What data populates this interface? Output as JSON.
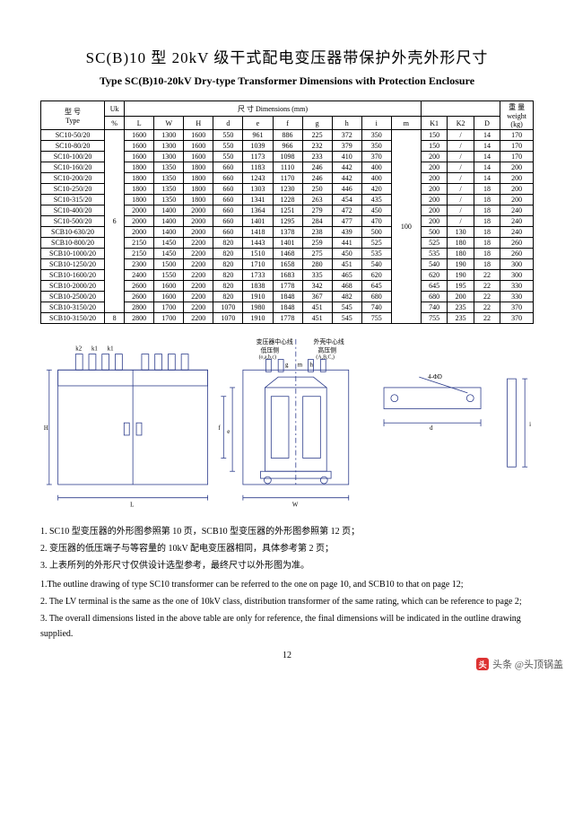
{
  "title_cn": "SC(B)10 型 20kV 级干式配电变压器带保护外壳外形尺寸",
  "title_en": "Type SC(B)10-20kV Dry-type Transformer Dimensions with Protection Enclosure",
  "header": {
    "type_cn": "型 号",
    "type_en": "Type",
    "uk": "Uk",
    "uk_unit": "%",
    "dims_label": "尺 寸    Dimensions (mm)",
    "weight_cn": "重 量",
    "weight_en": "weight",
    "weight_unit": "(kg)",
    "cols": [
      "L",
      "W",
      "H",
      "d",
      "e",
      "f",
      "g",
      "h",
      "i",
      "m",
      "K1",
      "K2",
      "D"
    ]
  },
  "uk_main": "6",
  "uk_last": "8",
  "m_shared": "100",
  "rows": [
    {
      "type": "SC10-50/20",
      "L": "1600",
      "W": "1300",
      "H": "1600",
      "d": "550",
      "e": "961",
      "f": "886",
      "g": "225",
      "h": "372",
      "i": "350",
      "K1": "150",
      "K2": "/",
      "D": "14",
      "wt": "170"
    },
    {
      "type": "SC10-80/20",
      "L": "1600",
      "W": "1300",
      "H": "1600",
      "d": "550",
      "e": "1039",
      "f": "966",
      "g": "232",
      "h": "379",
      "i": "350",
      "K1": "150",
      "K2": "/",
      "D": "14",
      "wt": "170"
    },
    {
      "type": "SC10-100/20",
      "L": "1600",
      "W": "1300",
      "H": "1600",
      "d": "550",
      "e": "1173",
      "f": "1098",
      "g": "233",
      "h": "410",
      "i": "370",
      "K1": "200",
      "K2": "/",
      "D": "14",
      "wt": "170"
    },
    {
      "type": "SC10-160/20",
      "L": "1800",
      "W": "1350",
      "H": "1800",
      "d": "660",
      "e": "1183",
      "f": "1110",
      "g": "246",
      "h": "442",
      "i": "400",
      "K1": "200",
      "K2": "/",
      "D": "14",
      "wt": "200"
    },
    {
      "type": "SC10-200/20",
      "L": "1800",
      "W": "1350",
      "H": "1800",
      "d": "660",
      "e": "1243",
      "f": "1170",
      "g": "246",
      "h": "442",
      "i": "400",
      "K1": "200",
      "K2": "/",
      "D": "14",
      "wt": "200"
    },
    {
      "type": "SC10-250/20",
      "L": "1800",
      "W": "1350",
      "H": "1800",
      "d": "660",
      "e": "1303",
      "f": "1230",
      "g": "250",
      "h": "446",
      "i": "420",
      "K1": "200",
      "K2": "/",
      "D": "18",
      "wt": "200"
    },
    {
      "type": "SC10-315/20",
      "L": "1800",
      "W": "1350",
      "H": "1800",
      "d": "660",
      "e": "1341",
      "f": "1228",
      "g": "263",
      "h": "454",
      "i": "435",
      "K1": "200",
      "K2": "/",
      "D": "18",
      "wt": "200"
    },
    {
      "type": "SC10-400/20",
      "L": "2000",
      "W": "1400",
      "H": "2000",
      "d": "660",
      "e": "1364",
      "f": "1251",
      "g": "279",
      "h": "472",
      "i": "450",
      "K1": "200",
      "K2": "/",
      "D": "18",
      "wt": "240"
    },
    {
      "type": "SC10-500/20",
      "L": "2000",
      "W": "1400",
      "H": "2000",
      "d": "660",
      "e": "1401",
      "f": "1295",
      "g": "284",
      "h": "477",
      "i": "470",
      "K1": "200",
      "K2": "/",
      "D": "18",
      "wt": "240"
    },
    {
      "type": "SCB10-630/20",
      "L": "2000",
      "W": "1400",
      "H": "2000",
      "d": "660",
      "e": "1418",
      "f": "1378",
      "g": "238",
      "h": "439",
      "i": "500",
      "K1": "500",
      "K2": "130",
      "D": "18",
      "wt": "240"
    },
    {
      "type": "SCB10-800/20",
      "L": "2150",
      "W": "1450",
      "H": "2200",
      "d": "820",
      "e": "1443",
      "f": "1401",
      "g": "259",
      "h": "441",
      "i": "525",
      "K1": "525",
      "K2": "180",
      "D": "18",
      "wt": "260"
    },
    {
      "type": "SCB10-1000/20",
      "L": "2150",
      "W": "1450",
      "H": "2200",
      "d": "820",
      "e": "1510",
      "f": "1468",
      "g": "275",
      "h": "450",
      "i": "535",
      "K1": "535",
      "K2": "180",
      "D": "18",
      "wt": "260"
    },
    {
      "type": "SCB10-1250/20",
      "L": "2300",
      "W": "1500",
      "H": "2200",
      "d": "820",
      "e": "1710",
      "f": "1658",
      "g": "280",
      "h": "451",
      "i": "540",
      "K1": "540",
      "K2": "190",
      "D": "18",
      "wt": "300"
    },
    {
      "type": "SCB10-1600/20",
      "L": "2400",
      "W": "1550",
      "H": "2200",
      "d": "820",
      "e": "1733",
      "f": "1683",
      "g": "335",
      "h": "465",
      "i": "620",
      "K1": "620",
      "K2": "190",
      "D": "22",
      "wt": "300"
    },
    {
      "type": "SCB10-2000/20",
      "L": "2600",
      "W": "1600",
      "H": "2200",
      "d": "820",
      "e": "1838",
      "f": "1778",
      "g": "342",
      "h": "468",
      "i": "645",
      "K1": "645",
      "K2": "195",
      "D": "22",
      "wt": "330"
    },
    {
      "type": "SCB10-2500/20",
      "L": "2600",
      "W": "1600",
      "H": "2200",
      "d": "820",
      "e": "1910",
      "f": "1848",
      "g": "367",
      "h": "482",
      "i": "680",
      "K1": "680",
      "K2": "200",
      "D": "22",
      "wt": "330"
    },
    {
      "type": "SCB10-3150/20",
      "L": "2800",
      "W": "1700",
      "H": "2200",
      "d": "1070",
      "e": "1980",
      "f": "1848",
      "g": "451",
      "h": "545",
      "i": "740",
      "K1": "740",
      "K2": "235",
      "D": "22",
      "wt": "370"
    },
    {
      "type": "SCB10-3150/20",
      "L": "2800",
      "W": "1700",
      "H": "2200",
      "d": "1070",
      "e": "1910",
      "f": "1778",
      "g": "451",
      "h": "545",
      "i": "755",
      "K1": "755",
      "K2": "235",
      "D": "22",
      "wt": "370"
    }
  ],
  "diagram_labels": {
    "center_trans": "变压器中心线",
    "center_shell": "外壳中心线",
    "lv_side": "低压侧",
    "lv_sub": "(o,a,b,c)",
    "hv_side": "高压侧",
    "hv_sub": "(A,B,C,)",
    "k2": "k2",
    "k1a": "k1",
    "k1b": "k1",
    "g": "g",
    "m": "m",
    "h": "h",
    "H": "H",
    "e": "e",
    "f": "f",
    "L": "L",
    "W": "W",
    "d": "d",
    "phiD": "4-ΦD",
    "i": "i"
  },
  "notes_cn": [
    "1. SC10 型变压器的外形图参照第 10 页，SCB10 型变压器的外形图参照第 12 页；",
    "2. 变压器的低压端子与等容量的 10kV 配电变压器相同，具体参考第 2 页；",
    "3. 上表所列的外形尺寸仅供设计选型参考，最终尺寸以外形图为准。"
  ],
  "notes_en": [
    "1.The outline drawing of type SC10 transformer can be referred to the one on page 10, and SCB10 to that on page 12;",
    "2. The LV terminal is the same as the one of 10kV class, distribution transformer of the same rating, which can be reference to page 2;",
    "3. The overall dimensions listed in the above table are only for reference, the final dimensions will be indicated in the outline drawing supplied."
  ],
  "page_number": "12",
  "watermark": "头条 @头顶锅盖",
  "colors": {
    "stroke": "#2a3a8a",
    "text": "#000000"
  }
}
